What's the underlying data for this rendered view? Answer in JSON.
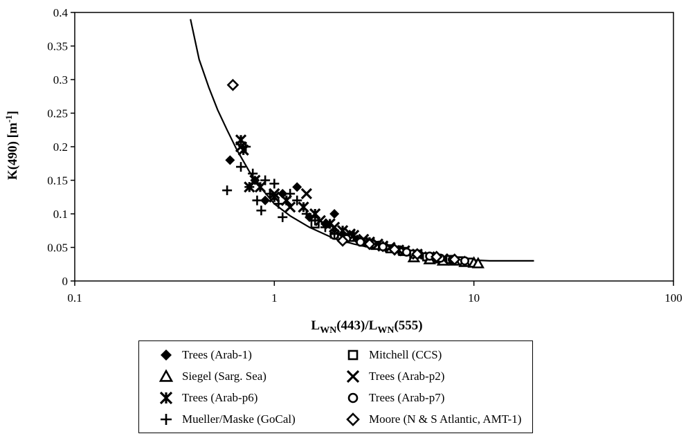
{
  "chart_data": {
    "type": "scatter",
    "title": "",
    "xlabel": {
      "main": "L",
      "sub1": "WN",
      "mid": "(443)/L",
      "sub2": "WN",
      "end": "(555)"
    },
    "ylabel": {
      "main": "K(490) [m",
      "sup": "-1",
      "end": "]"
    },
    "xscale": "log",
    "xlim": [
      0.1,
      100
    ],
    "ylim": [
      0,
      0.4
    ],
    "xticks": [
      0.1,
      1,
      10,
      100
    ],
    "xtick_labels": [
      "0.1",
      "1",
      "10",
      "100"
    ],
    "yticks": [
      0,
      0.05,
      0.1,
      0.15,
      0.2,
      0.25,
      0.3,
      0.35,
      0.4
    ],
    "ytick_labels": [
      "0",
      "0.05",
      "0.1",
      "0.15",
      "0.2",
      "0.25",
      "0.3",
      "0.35",
      "0.4"
    ],
    "grid": false,
    "legend_position": "below",
    "model_curve": {
      "x": [
        0.38,
        0.42,
        0.47,
        0.52,
        0.58,
        0.65,
        0.75,
        0.85,
        1.0,
        1.2,
        1.5,
        2.0,
        2.5,
        3.0,
        4.0,
        5.0,
        6.0,
        8.0,
        10.0,
        12.0,
        15.0,
        20.0
      ],
      "y": [
        0.39,
        0.33,
        0.288,
        0.255,
        0.225,
        0.195,
        0.163,
        0.14,
        0.115,
        0.097,
        0.08,
        0.063,
        0.055,
        0.05,
        0.043,
        0.039,
        0.036,
        0.032,
        0.031,
        0.03,
        0.03,
        0.03
      ]
    },
    "series": [
      {
        "name": "Trees (Arab-1)",
        "marker": "filled-diamond",
        "x": [
          0.6,
          1.3,
          2.0,
          1.1,
          0.8,
          0.9,
          1.5,
          1.8,
          2.2,
          2.6,
          3.0,
          3.5,
          4.0
        ],
        "y": [
          0.18,
          0.14,
          0.1,
          0.13,
          0.15,
          0.12,
          0.095,
          0.085,
          0.07,
          0.062,
          0.058,
          0.05,
          0.045
        ]
      },
      {
        "name": "Mitchell (CCS)",
        "marker": "open-square",
        "x": [
          1.6,
          2.0,
          2.4,
          2.8,
          3.2,
          3.8,
          4.4,
          5.0,
          5.8,
          6.6,
          7.6,
          8.5,
          9.5
        ],
        "y": [
          0.085,
          0.07,
          0.065,
          0.058,
          0.053,
          0.048,
          0.044,
          0.04,
          0.036,
          0.033,
          0.032,
          0.03,
          0.028
        ]
      },
      {
        "name": "Siegel (Sarg. Sea)",
        "marker": "open-triangle",
        "x": [
          5.0,
          6.0,
          7.0,
          8.0,
          9.0,
          10.0,
          10.5
        ],
        "y": [
          0.035,
          0.032,
          0.03,
          0.03,
          0.028,
          0.027,
          0.026
        ]
      },
      {
        "name": "Trees (Arab-p2)",
        "marker": "x-cross",
        "x": [
          0.68,
          0.8,
          1.0,
          1.2,
          1.45,
          1.7,
          2.0,
          2.4,
          2.8,
          3.3,
          3.8,
          4.5,
          5.2,
          6.0,
          7.0
        ],
        "y": [
          0.2,
          0.15,
          0.13,
          0.11,
          0.13,
          0.09,
          0.08,
          0.07,
          0.062,
          0.055,
          0.05,
          0.045,
          0.04,
          0.036,
          0.033
        ]
      },
      {
        "name": "Trees (Arab-p6)",
        "marker": "asterisk",
        "x": [
          0.68,
          0.7,
          0.75,
          0.85,
          1.0,
          1.15,
          1.4,
          1.6,
          1.9,
          2.2,
          2.5,
          3.0,
          3.5,
          4.2
        ],
        "y": [
          0.21,
          0.195,
          0.14,
          0.14,
          0.125,
          0.12,
          0.11,
          0.1,
          0.085,
          0.075,
          0.068,
          0.058,
          0.052,
          0.046
        ]
      },
      {
        "name": "Trees (Arab-p7)",
        "marker": "open-circle",
        "x": [
          2.0,
          2.3,
          2.7,
          3.1,
          3.5,
          4.0,
          4.6,
          5.3,
          6.0,
          6.8,
          7.8,
          9.0
        ],
        "y": [
          0.068,
          0.063,
          0.058,
          0.055,
          0.051,
          0.047,
          0.043,
          0.04,
          0.037,
          0.034,
          0.032,
          0.03
        ]
      },
      {
        "name": "Mueller/Maske (GoCal)",
        "marker": "plus",
        "x": [
          0.58,
          0.68,
          0.72,
          0.75,
          0.78,
          0.82,
          0.86,
          0.9,
          0.95,
          1.0,
          1.05,
          1.1,
          1.2,
          1.3,
          1.45,
          1.6,
          1.8,
          2.0
        ],
        "y": [
          0.135,
          0.17,
          0.2,
          0.14,
          0.16,
          0.12,
          0.105,
          0.15,
          0.13,
          0.145,
          0.115,
          0.095,
          0.13,
          0.12,
          0.1,
          0.09,
          0.08,
          0.07
        ]
      },
      {
        "name": "Moore (N & S Atlantic, AMT-1)",
        "marker": "open-diamond",
        "x": [
          0.62,
          2.2,
          3.0,
          4.0,
          5.2,
          6.5,
          8.0
        ],
        "y": [
          0.292,
          0.06,
          0.055,
          0.047,
          0.04,
          0.036,
          0.032
        ]
      }
    ]
  }
}
